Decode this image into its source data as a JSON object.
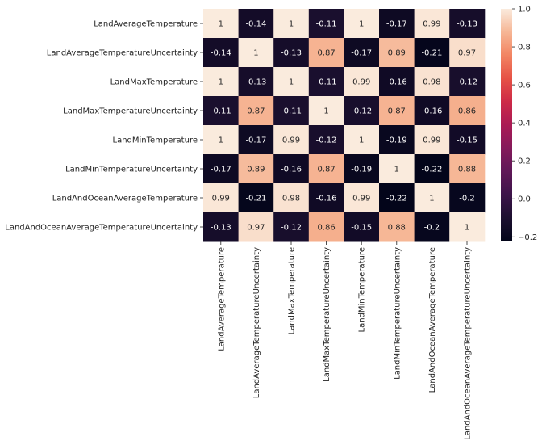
{
  "chart_data": {
    "type": "heatmap",
    "title": "",
    "xlabel": "",
    "ylabel": "",
    "labels": [
      "LandAverageTemperature",
      "LandAverageTemperatureUncertainty",
      "LandMaxTemperature",
      "LandMaxTemperatureUncertainty",
      "LandMinTemperature",
      "LandMinTemperatureUncertainty",
      "LandAndOceanAverageTemperature",
      "LandAndOceanAverageTemperatureUncertainty"
    ],
    "matrix": [
      [
        1,
        -0.14,
        1,
        -0.11,
        1,
        -0.17,
        0.99,
        -0.13
      ],
      [
        -0.14,
        1,
        -0.13,
        0.87,
        -0.17,
        0.89,
        -0.21,
        0.97
      ],
      [
        1,
        -0.13,
        1,
        -0.11,
        0.99,
        -0.16,
        0.98,
        -0.12
      ],
      [
        -0.11,
        0.87,
        -0.11,
        1,
        -0.12,
        0.87,
        -0.16,
        0.86
      ],
      [
        1,
        -0.17,
        0.99,
        -0.12,
        1,
        -0.19,
        0.99,
        -0.15
      ],
      [
        -0.17,
        0.89,
        -0.16,
        0.87,
        -0.19,
        1,
        -0.22,
        0.88
      ],
      [
        0.99,
        -0.21,
        0.98,
        -0.16,
        0.99,
        -0.22,
        1,
        -0.2
      ],
      [
        -0.13,
        0.97,
        -0.12,
        0.86,
        -0.15,
        0.88,
        -0.2,
        1
      ]
    ],
    "annotations_shown": true,
    "colormap": "rocket",
    "vmin": -0.22,
    "vmax": 1.0,
    "colorbar": {
      "ticks": [
        -0.2,
        0.0,
        0.2,
        0.4,
        0.6,
        0.8,
        1.0
      ],
      "tick_labels": [
        "−0.2",
        "0.0",
        "0.2",
        "0.4",
        "0.6",
        "0.8",
        "1.0"
      ]
    }
  }
}
